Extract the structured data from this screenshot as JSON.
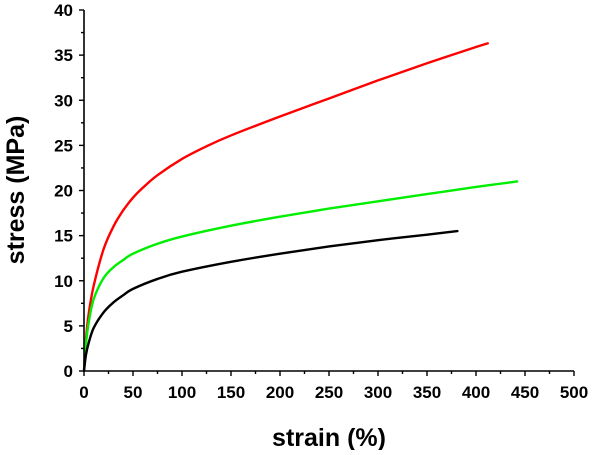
{
  "chart_data": {
    "type": "line",
    "title": "",
    "xlabel": "strain (%)",
    "ylabel": "stress (MPa)",
    "xlim": [
      0,
      500
    ],
    "ylim": [
      0,
      40
    ],
    "xticks": [
      0,
      50,
      100,
      150,
      200,
      250,
      300,
      350,
      400,
      450,
      500
    ],
    "yticks": [
      0,
      5,
      10,
      15,
      20,
      25,
      30,
      35,
      40
    ],
    "grid": false,
    "legend": "none",
    "series": [
      {
        "color": "#ff0000",
        "x": [
          0,
          2,
          5,
          10,
          20,
          30,
          40,
          50,
          60,
          75,
          100,
          125,
          150,
          200,
          250,
          300,
          350,
          400,
          412
        ],
        "y": [
          0,
          3.5,
          6.5,
          9.5,
          13.5,
          16,
          17.8,
          19.2,
          20.3,
          21.7,
          23.5,
          24.9,
          26.1,
          28.2,
          30.2,
          32.2,
          34.1,
          35.9,
          36.3
        ]
      },
      {
        "color": "#00ee00",
        "x": [
          0,
          2,
          5,
          10,
          20,
          30,
          40,
          50,
          75,
          100,
          150,
          200,
          250,
          300,
          350,
          400,
          442
        ],
        "y": [
          0,
          3,
          5.5,
          8,
          10.3,
          11.5,
          12.3,
          13,
          14.1,
          14.9,
          16.1,
          17.1,
          18,
          18.8,
          19.6,
          20.4,
          21
        ]
      },
      {
        "color": "#000000",
        "x": [
          0,
          2,
          5,
          10,
          20,
          30,
          40,
          50,
          75,
          100,
          150,
          200,
          250,
          300,
          350,
          381
        ],
        "y": [
          0,
          1.8,
          3.2,
          4.8,
          6.5,
          7.6,
          8.4,
          9.1,
          10.2,
          11,
          12.1,
          13,
          13.8,
          14.5,
          15.1,
          15.5
        ]
      }
    ]
  }
}
